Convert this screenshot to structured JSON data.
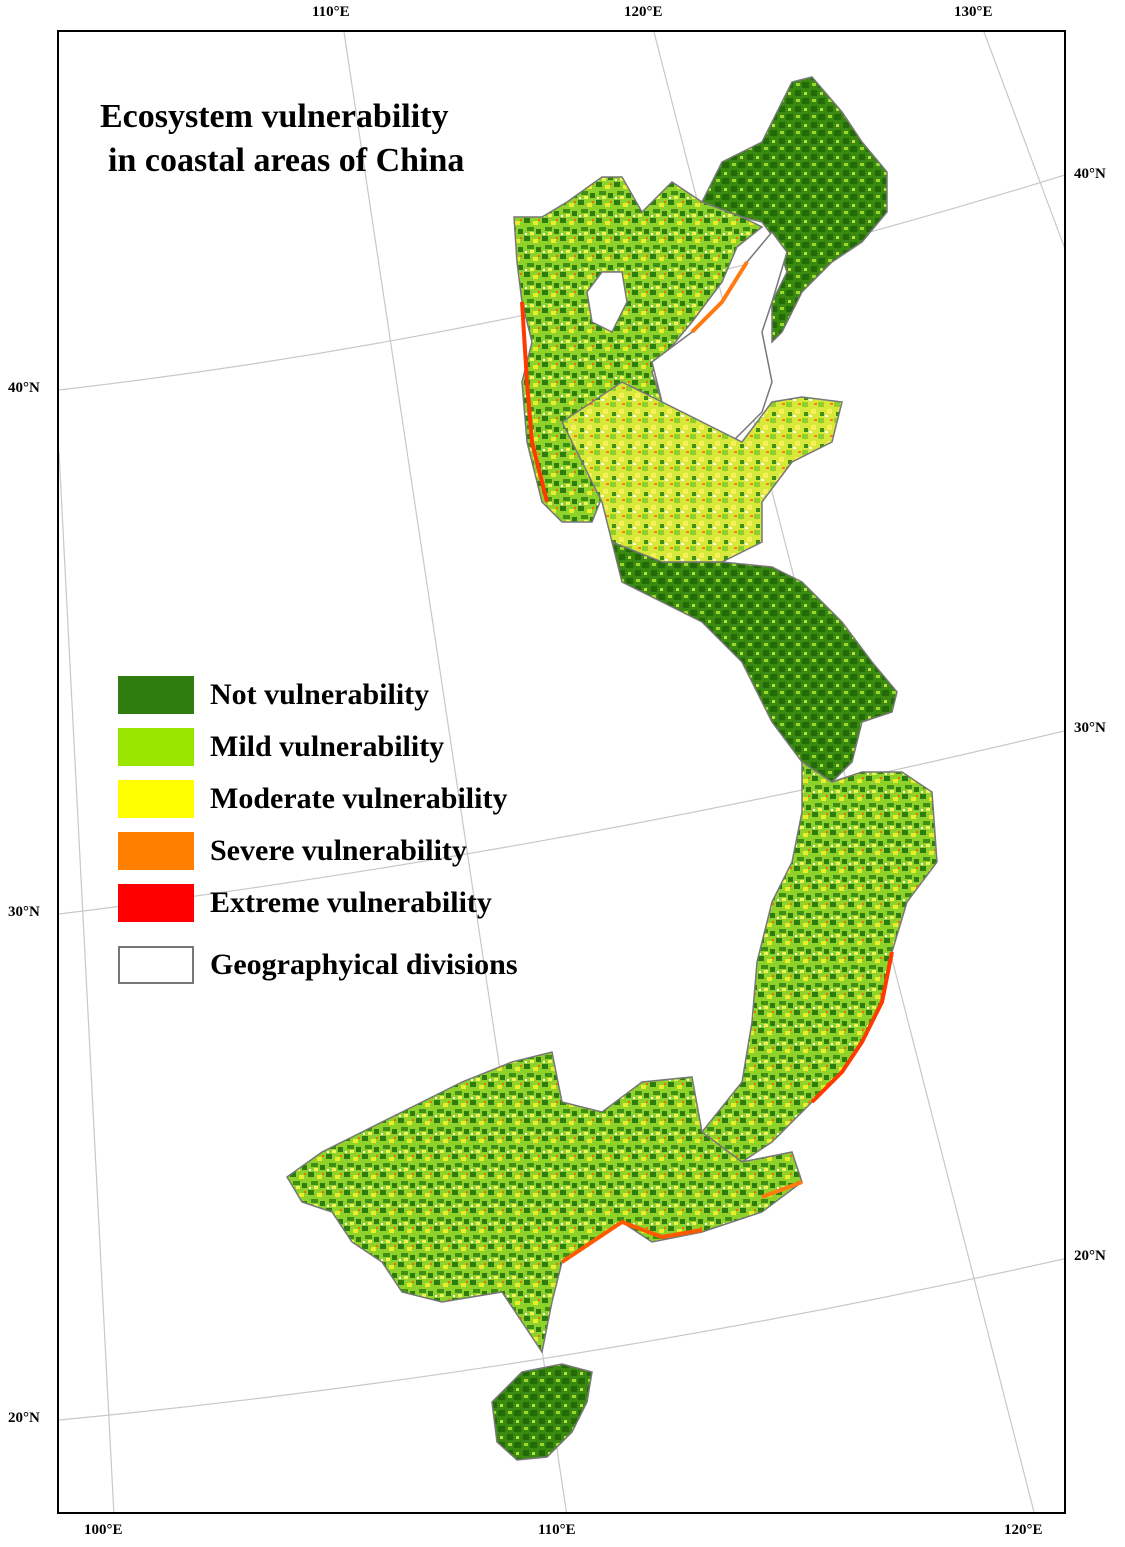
{
  "title": {
    "line1": "Ecosystem vulnerability",
    "line2": "in coastal areas of China"
  },
  "legend": [
    {
      "label": "Not vulnerability",
      "color": "#2e7d0e",
      "border": "#2e7d0e"
    },
    {
      "label": "Mild vulnerability",
      "color": "#99e600",
      "border": "#99e600"
    },
    {
      "label": "Moderate vulnerability",
      "color": "#ffff00",
      "border": "#ffff00"
    },
    {
      "label": "Severe vulnerability",
      "color": "#ff8000",
      "border": "#ff8000"
    },
    {
      "label": "Extreme vulnerability",
      "color": "#ff0000",
      "border": "#ff0000"
    },
    {
      "label": "Geographyical divisions",
      "color": "#ffffff",
      "border": "#777777"
    }
  ],
  "graticule": {
    "top_longitudes": [
      "110°E",
      "120°E",
      "130°E"
    ],
    "bottom_longitudes": [
      "100°E",
      "110°E",
      "120°E"
    ],
    "left_latitudes": [
      "40°N",
      "30°N",
      "20°N"
    ],
    "right_latitudes": [
      "40°N",
      "30°N",
      "20°N"
    ]
  },
  "colors": {
    "frame": "#000000",
    "graticule": "#c8c8c8",
    "region_outline": "#777777"
  }
}
